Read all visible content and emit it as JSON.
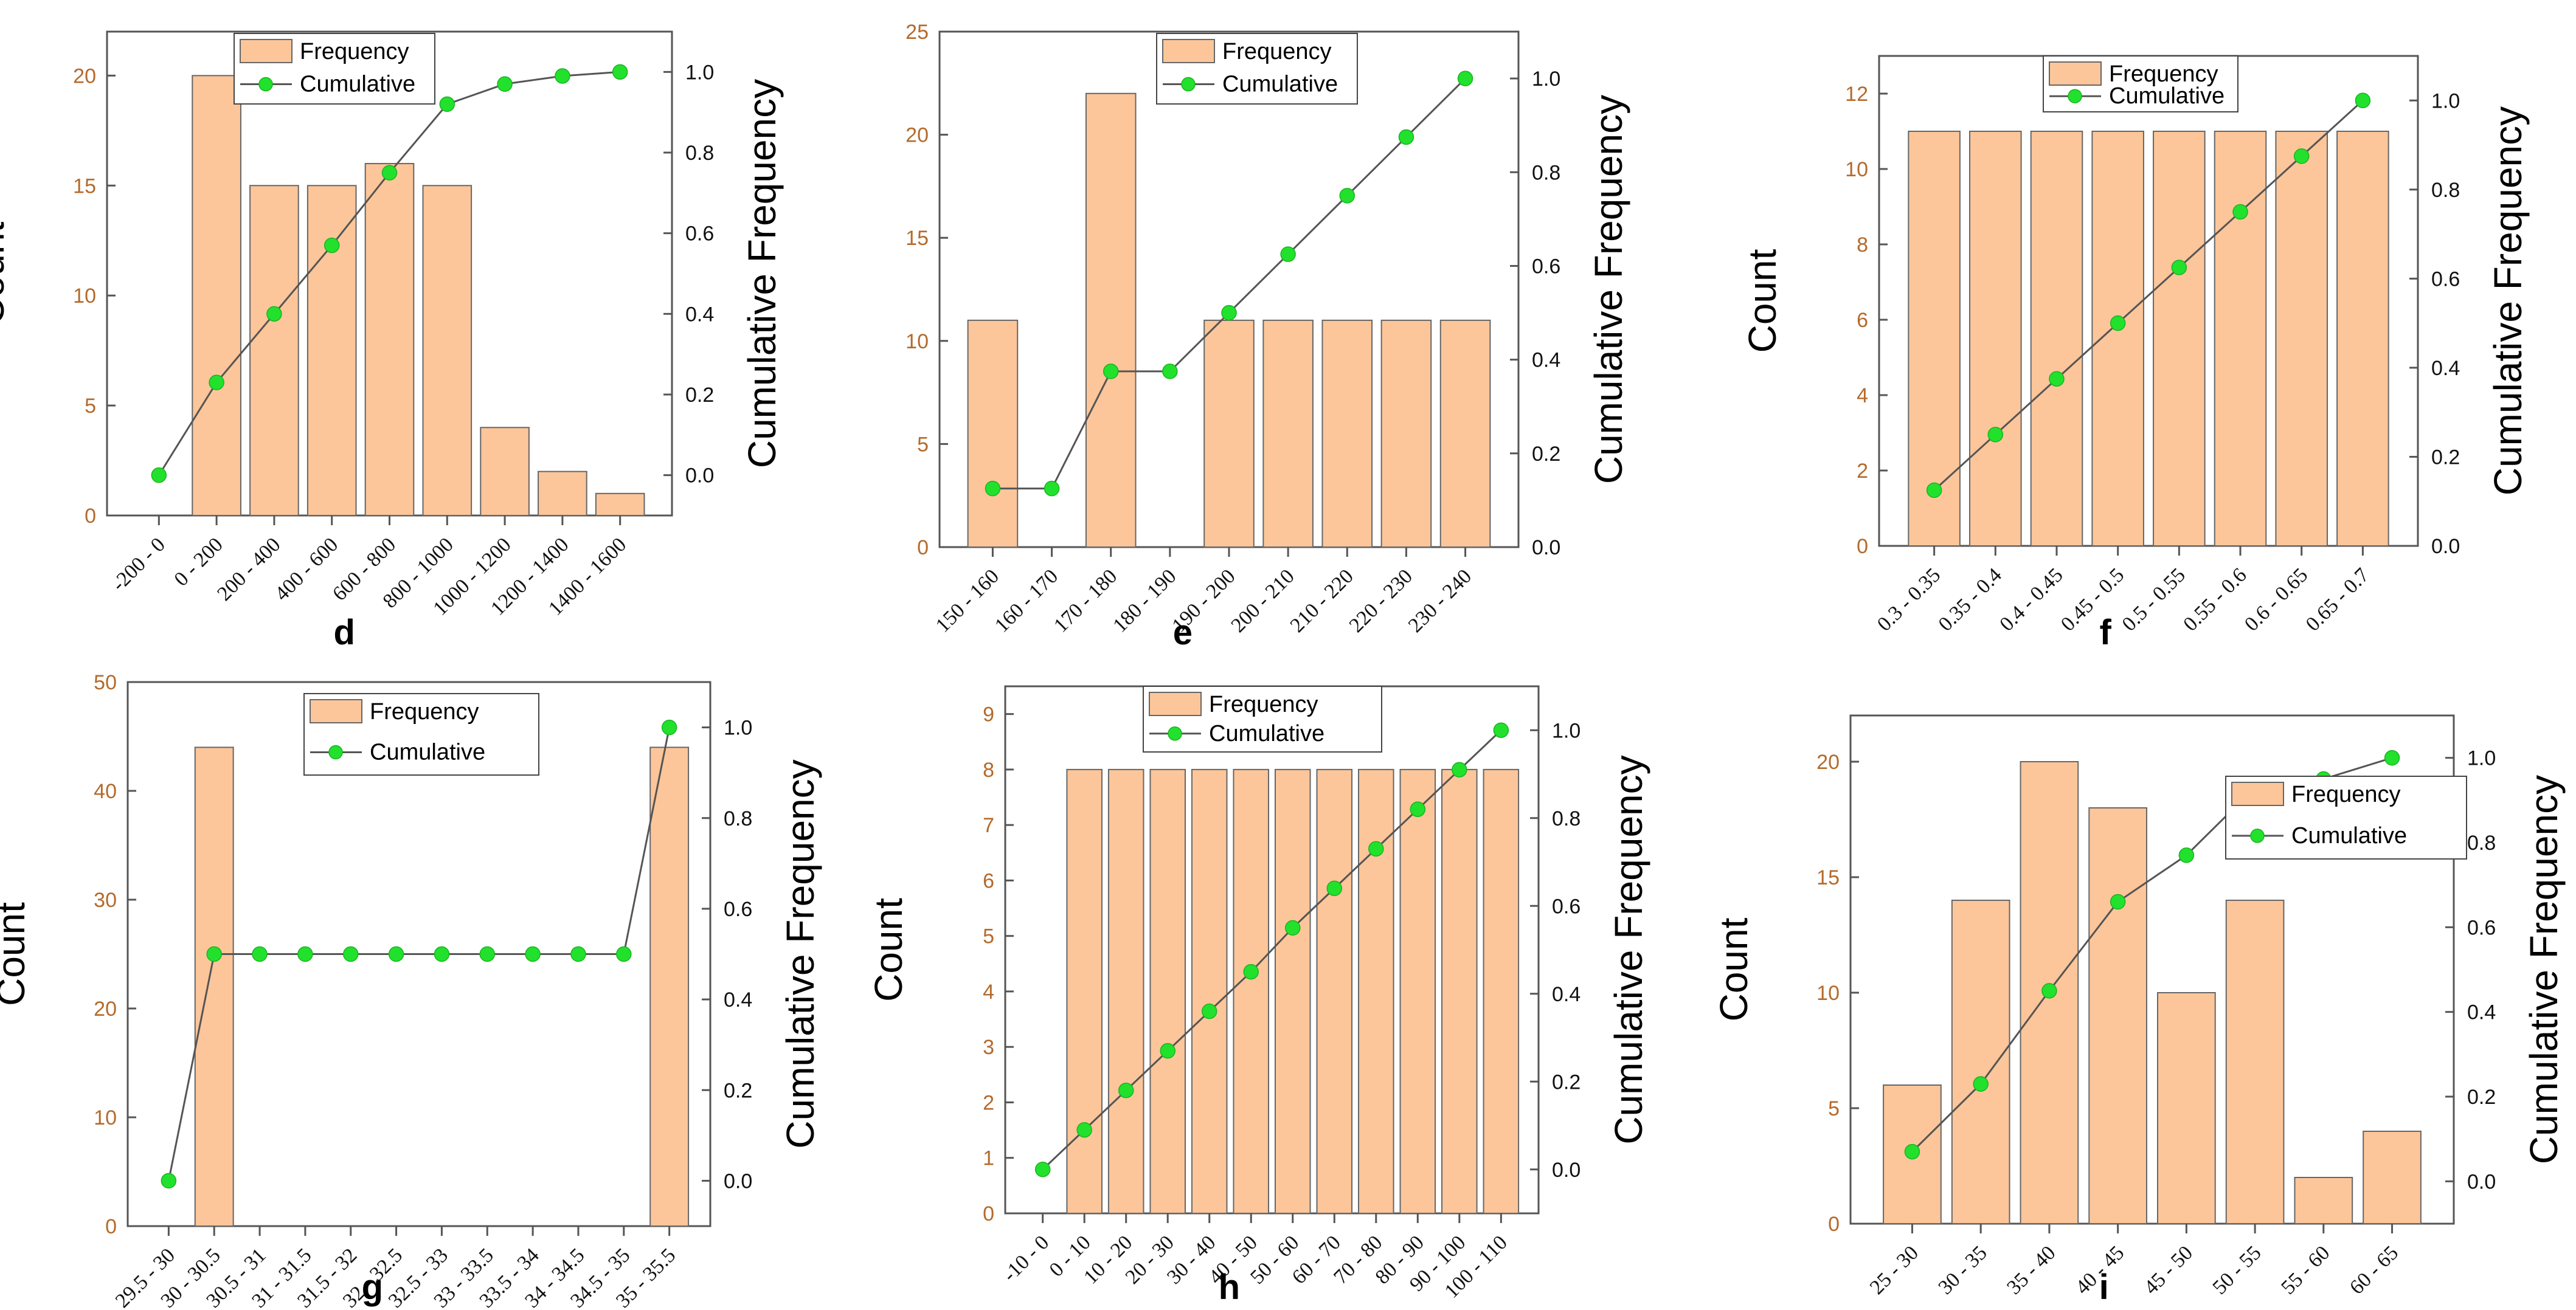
{
  "chart_data": [
    {
      "panel_label": "d",
      "type": "bar+line",
      "categories": [
        "-200 - 0",
        "0 - 200",
        "200 - 400",
        "400 - 600",
        "600 - 800",
        "800 - 1000",
        "1000 - 1200",
        "1200 - 1400",
        "1400 - 1600"
      ],
      "series": [
        {
          "name": "Frequency",
          "type": "bar",
          "values": [
            0,
            20,
            15,
            15,
            16,
            15,
            4,
            2,
            1
          ]
        },
        {
          "name": "Cumulative",
          "type": "line",
          "values": [
            0.0,
            0.23,
            0.4,
            0.57,
            0.75,
            0.92,
            0.97,
            0.99,
            1.0
          ]
        }
      ],
      "ylabel": "Count",
      "y2label": "Cumulative Frequency",
      "ylim": [
        0,
        22
      ],
      "yticks": [
        0,
        5,
        10,
        15,
        20
      ],
      "y2lim": [
        -0.1,
        1.1
      ],
      "y2ticks": [
        0.0,
        0.2,
        0.4,
        0.6,
        0.8,
        1.0
      ],
      "legend_position": "top-center"
    },
    {
      "panel_label": "e",
      "type": "bar+line",
      "categories": [
        "150 - 160",
        "160 - 170",
        "170 - 180",
        "180 - 190",
        "190 - 200",
        "200 - 210",
        "210 - 220",
        "220 - 230",
        "230 - 240"
      ],
      "series": [
        {
          "name": "Frequency",
          "type": "bar",
          "values": [
            11,
            0,
            22,
            0,
            11,
            11,
            11,
            11,
            11
          ]
        },
        {
          "name": "Cumulative",
          "type": "line",
          "values": [
            0.125,
            0.125,
            0.375,
            0.375,
            0.5,
            0.625,
            0.75,
            0.875,
            1.0
          ]
        }
      ],
      "ylabel": "Count",
      "y2label": "Cumulative Frequency",
      "ylim": [
        0,
        25
      ],
      "yticks": [
        0,
        5,
        10,
        15,
        20,
        25
      ],
      "y2lim": [
        0.0,
        1.1
      ],
      "y2ticks": [
        0.0,
        0.2,
        0.4,
        0.6,
        0.8,
        1.0
      ],
      "legend_position": "top-right"
    },
    {
      "panel_label": "f",
      "type": "bar+line",
      "categories": [
        "0.3 - 0.35",
        "0.35 - 0.4",
        "0.4 - 0.45",
        "0.45 - 0.5",
        "0.5 - 0.55",
        "0.55 - 0.6",
        "0.6 - 0.65",
        "0.65 - 0.7"
      ],
      "series": [
        {
          "name": "Frequency",
          "type": "bar",
          "values": [
            11,
            11,
            11,
            11,
            11,
            11,
            11,
            11
          ]
        },
        {
          "name": "Cumulative",
          "type": "line",
          "values": [
            0.125,
            0.25,
            0.375,
            0.5,
            0.625,
            0.75,
            0.875,
            1.0
          ]
        }
      ],
      "ylabel": "Count",
      "y2label": "Cumulative Frequency",
      "ylim": [
        0,
        13
      ],
      "yticks": [
        0,
        2,
        4,
        6,
        8,
        10,
        12
      ],
      "y2lim": [
        0.0,
        1.1
      ],
      "y2ticks": [
        0.0,
        0.2,
        0.4,
        0.6,
        0.8,
        1.0
      ],
      "legend_position": "top-right"
    },
    {
      "panel_label": "g",
      "type": "bar+line",
      "categories": [
        "29.5 - 30",
        "30 - 30.5",
        "30.5 - 31",
        "31 - 31.5",
        "31.5 - 32",
        "32 - 32.5",
        "32.5 - 33",
        "33 - 33.5",
        "33.5 - 34",
        "34 - 34.5",
        "34.5 - 35",
        "35 - 35.5"
      ],
      "series": [
        {
          "name": "Frequency",
          "type": "bar",
          "values": [
            0,
            44,
            0,
            0,
            0,
            0,
            0,
            0,
            0,
            0,
            0,
            44
          ]
        },
        {
          "name": "Cumulative",
          "type": "line",
          "values": [
            0.0,
            0.5,
            0.5,
            0.5,
            0.5,
            0.5,
            0.5,
            0.5,
            0.5,
            0.5,
            0.5,
            1.0
          ]
        }
      ],
      "ylabel": "Count",
      "y2label": "Cumulative Frequency",
      "ylim": [
        0,
        50
      ],
      "yticks": [
        0,
        10,
        20,
        30,
        40,
        50
      ],
      "y2lim": [
        -0.1,
        1.1
      ],
      "y2ticks": [
        0.0,
        0.2,
        0.4,
        0.6,
        0.8,
        1.0
      ],
      "legend_position": "top-center"
    },
    {
      "panel_label": "h",
      "type": "bar+line",
      "categories": [
        "-10 - 0",
        "0 - 10",
        "10 - 20",
        "20 - 30",
        "30 - 40",
        "40 - 50",
        "50 - 60",
        "60 - 70",
        "70 - 80",
        "80 - 90",
        "90 - 100",
        "100 - 110"
      ],
      "series": [
        {
          "name": "Frequency",
          "type": "bar",
          "values": [
            0,
            8,
            8,
            8,
            8,
            8,
            8,
            8,
            8,
            8,
            8,
            8
          ]
        },
        {
          "name": "Cumulative",
          "type": "line",
          "values": [
            0.0,
            0.09,
            0.18,
            0.27,
            0.36,
            0.45,
            0.55,
            0.64,
            0.73,
            0.82,
            0.91,
            1.0
          ]
        }
      ],
      "ylabel": "Count",
      "y2label": "Cumulative Frequency",
      "ylim": [
        0,
        9.5
      ],
      "yticks": [
        0,
        1,
        2,
        3,
        4,
        5,
        6,
        7,
        8,
        9
      ],
      "y2lim": [
        -0.1,
        1.1
      ],
      "y2ticks": [
        0.0,
        0.2,
        0.4,
        0.6,
        0.8,
        1.0
      ],
      "legend_position": "top-center"
    },
    {
      "panel_label": "i",
      "type": "bar+line",
      "categories": [
        "25 - 30",
        "30 - 35",
        "35 - 40",
        "40 - 45",
        "45 - 50",
        "50 - 55",
        "55 - 60",
        "60 - 65"
      ],
      "series": [
        {
          "name": "Frequency",
          "type": "bar",
          "values": [
            6,
            14,
            20,
            18,
            10,
            14,
            2,
            4
          ]
        },
        {
          "name": "Cumulative",
          "type": "line",
          "values": [
            0.07,
            0.23,
            0.45,
            0.66,
            0.77,
            0.93,
            0.95,
            1.0
          ]
        }
      ],
      "ylabel": "Count",
      "y2label": "Cumulative Frequency",
      "ylim": [
        0,
        22
      ],
      "yticks": [
        0,
        5,
        10,
        15,
        20
      ],
      "y2lim": [
        -0.1,
        1.1
      ],
      "y2ticks": [
        0.0,
        0.2,
        0.4,
        0.6,
        0.8,
        1.0
      ],
      "legend_position": "top-right"
    }
  ]
}
